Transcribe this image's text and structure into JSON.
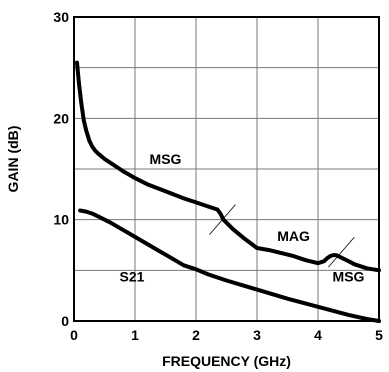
{
  "chart_data": {
    "type": "line",
    "xlabel": "FREQUENCY (GHz)",
    "ylabel": "GAIN (dB)",
    "xlim": [
      0,
      5
    ],
    "ylim": [
      0,
      30
    ],
    "x_ticks": [
      "0",
      "1",
      "2",
      "3",
      "4",
      "5"
    ],
    "y_ticks": [
      "0",
      "10",
      "20",
      "30"
    ],
    "grid": true,
    "annotations": [
      {
        "id": "msg1",
        "text": "MSG",
        "x": 1.5,
        "y": 15.5
      },
      {
        "id": "mag",
        "text": "MAG",
        "x": 3.6,
        "y": 7.9
      },
      {
        "id": "msg2",
        "text": "MSG",
        "x": 4.5,
        "y": 3.9
      },
      {
        "id": "s21",
        "text": "S21",
        "x": 0.95,
        "y": 3.9
      }
    ],
    "series": [
      {
        "id": "gain-upper",
        "x": [
          0.05,
          0.08,
          0.12,
          0.16,
          0.2,
          0.25,
          0.3,
          0.35,
          0.4,
          0.5,
          0.6,
          0.8,
          1.0,
          1.2,
          1.5,
          1.8,
          2.0,
          2.2,
          2.35,
          2.4,
          2.45,
          2.5,
          2.6,
          2.8,
          3.0,
          3.2,
          3.4,
          3.6,
          3.8,
          4.0,
          4.1,
          4.15,
          4.2,
          4.25,
          4.3,
          4.4,
          4.5,
          4.6,
          4.7,
          4.8,
          4.9,
          5.0
        ],
        "y": [
          25.5,
          23.5,
          21.5,
          19.8,
          18.8,
          17.8,
          17.2,
          16.8,
          16.5,
          16.0,
          15.6,
          14.8,
          14.1,
          13.5,
          12.8,
          12.1,
          11.7,
          11.3,
          11.0,
          10.6,
          10.0,
          9.7,
          9.1,
          8.1,
          7.2,
          7.0,
          6.7,
          6.4,
          6.0,
          5.7,
          5.9,
          6.2,
          6.4,
          6.5,
          6.5,
          6.2,
          5.9,
          5.6,
          5.4,
          5.2,
          5.1,
          5.0
        ]
      },
      {
        "id": "s21",
        "x": [
          0.1,
          0.2,
          0.3,
          0.4,
          0.6,
          0.8,
          1.0,
          1.2,
          1.4,
          1.6,
          1.8,
          2.0,
          2.2,
          2.5,
          3.0,
          3.5,
          4.0,
          4.5,
          4.8,
          5.0
        ],
        "y": [
          10.9,
          10.8,
          10.6,
          10.3,
          9.7,
          9.0,
          8.3,
          7.6,
          6.9,
          6.2,
          5.5,
          5.1,
          4.6,
          4.0,
          3.1,
          2.2,
          1.4,
          0.6,
          0.2,
          0.0
        ]
      }
    ]
  }
}
